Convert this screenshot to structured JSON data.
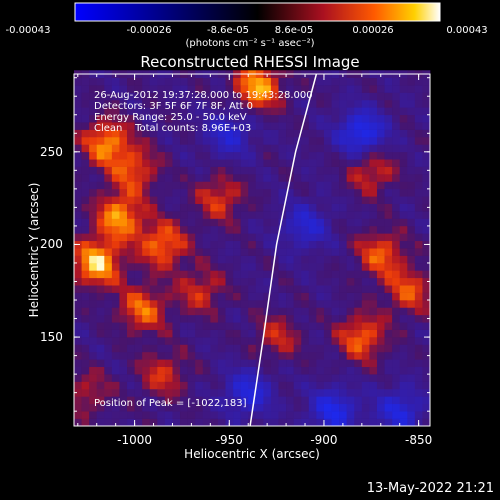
{
  "chart_data": {
    "type": "heatmap",
    "title": "Reconstructed RHESSI Image",
    "xlabel": "Heliocentric X (arcsec)",
    "ylabel": "Heliocentric Y (arcsec)",
    "xlim": [
      -1032,
      -844
    ],
    "ylim": [
      102,
      292
    ],
    "xticks": [
      "-1000",
      "-950",
      "-900",
      "-850"
    ],
    "yticks": [
      "150",
      "200",
      "250"
    ],
    "colorbar": {
      "min": -0.00043,
      "max": 0.00043,
      "tick_labels": [
        "-0.00043",
        "-0.00026",
        "-8.6e-05",
        "8.6e-05",
        "0.00026",
        "0.00043"
      ],
      "units": "(photons cm⁻² s⁻¹ asec⁻²)"
    },
    "annotations": {
      "time": "26-Aug-2012 19:37:28.000 to 19:43:28.000",
      "detectors": "Detectors: 3F 5F 6F 7F 8F, Att 0",
      "energy": "Energy Range: 25.0 - 50.0 keV",
      "clean": "Clean    Total counts: 8.96E+03",
      "peak": "Position of Peak = [-1022,183]"
    },
    "limb_curve": [
      [
        -939,
        102
      ],
      [
        -932,
        150
      ],
      [
        -925,
        200
      ],
      [
        -915,
        250
      ],
      [
        -904,
        292
      ]
    ],
    "bright_sources": [
      {
        "x": -1020,
        "y": 190,
        "level": 1.0
      },
      {
        "x": -1008,
        "y": 215,
        "level": 0.85
      },
      {
        "x": -996,
        "y": 165,
        "level": 0.7
      },
      {
        "x": -985,
        "y": 200,
        "level": 0.75
      },
      {
        "x": -1015,
        "y": 255,
        "level": 0.8
      },
      {
        "x": -1000,
        "y": 240,
        "level": 0.6
      },
      {
        "x": -955,
        "y": 225,
        "level": 0.55
      },
      {
        "x": -935,
        "y": 285,
        "level": 0.9
      },
      {
        "x": -965,
        "y": 175,
        "level": 0.5
      },
      {
        "x": -880,
        "y": 150,
        "level": 0.7
      },
      {
        "x": -870,
        "y": 195,
        "level": 0.65
      },
      {
        "x": -875,
        "y": 240,
        "level": 0.55
      },
      {
        "x": -855,
        "y": 175,
        "level": 0.6
      },
      {
        "x": -985,
        "y": 130,
        "level": 0.5
      },
      {
        "x": -1025,
        "y": 120,
        "level": 0.4
      },
      {
        "x": -925,
        "y": 150,
        "level": 0.45
      }
    ],
    "dim_sources": [
      {
        "x": -880,
        "y": 260,
        "level": -0.9
      },
      {
        "x": -895,
        "y": 110,
        "level": -0.8
      },
      {
        "x": -940,
        "y": 120,
        "level": -0.7
      },
      {
        "x": -910,
        "y": 210,
        "level": -0.6
      },
      {
        "x": -950,
        "y": 260,
        "level": -0.6
      },
      {
        "x": -860,
        "y": 110,
        "level": -0.7
      }
    ]
  },
  "timestamp": "13-May-2022 21:21"
}
